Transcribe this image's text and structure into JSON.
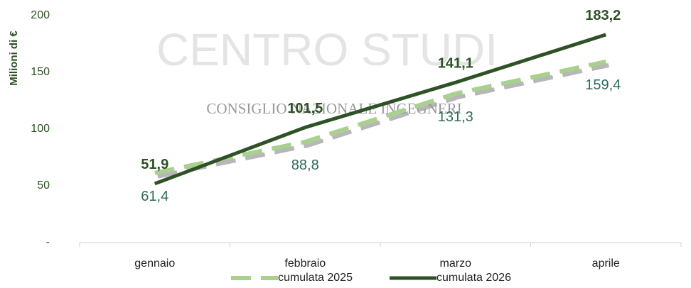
{
  "chart_data": {
    "type": "line",
    "watermark": [
      "CENTRO STUDI",
      "CONSIGLIO NAZIONALE INGEGNERI"
    ],
    "y_label": "Milioni di €",
    "categories": [
      "gennaio",
      "febbraio",
      "marzo",
      "aprile"
    ],
    "series": [
      {
        "name": "cumulata 2025",
        "color": "#a9d18e",
        "dashed": true,
        "values": [
          61.4,
          88.8,
          131.3,
          159.4
        ],
        "value_labels": [
          "61,4",
          "88,8",
          "131,3",
          "159,4"
        ]
      },
      {
        "name": "cumulata 2026",
        "color": "#2e5226",
        "dashed": false,
        "values": [
          51.9,
          101.5,
          141.1,
          183.2
        ],
        "value_labels": [
          "51,9",
          "101,5",
          "141,1",
          "183,2"
        ]
      }
    ],
    "ylim": [
      0,
      200
    ],
    "yticks": [
      {
        "value": 0,
        "label": "-"
      },
      50,
      100,
      150,
      200
    ]
  }
}
